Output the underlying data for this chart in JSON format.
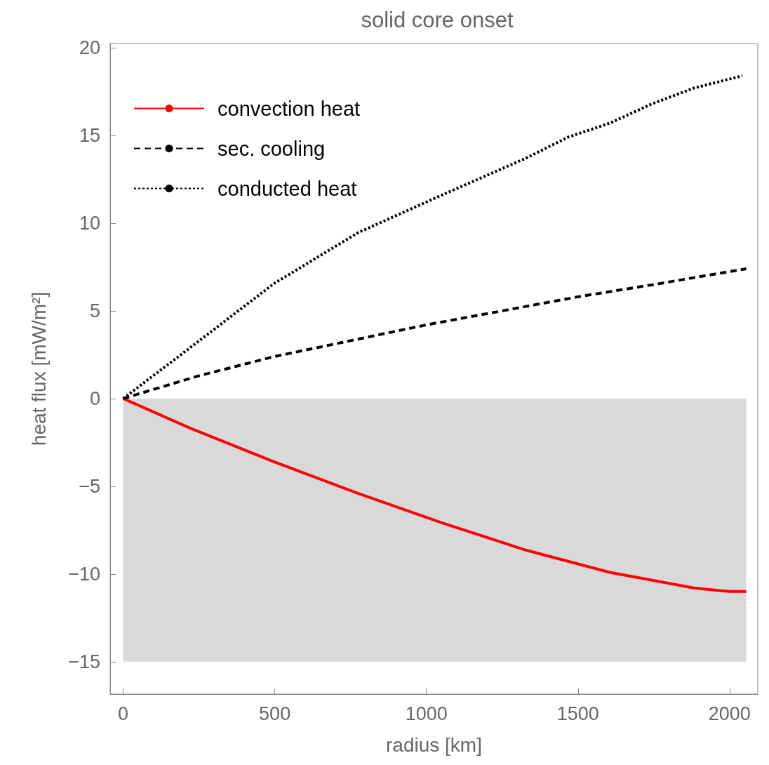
{
  "chart_data": {
    "type": "line",
    "title": "solid core onset",
    "xlabel": "radius [km]",
    "ylabel": "heat flux [mW/m²]",
    "xlim": [
      -43,
      2093
    ],
    "ylim": [
      -16.85,
      20.24
    ],
    "xticks": [
      0,
      500,
      1000,
      1500,
      2000
    ],
    "yticks": [
      {
        "value": -15,
        "label": "−15"
      },
      {
        "value": -10,
        "label": "−10"
      },
      {
        "value": -5,
        "label": "−5"
      },
      0,
      5,
      10,
      15,
      20
    ],
    "grid": false,
    "legend": "top left",
    "marker": "none",
    "bands": [
      {
        "axis": "y",
        "from": -15,
        "to": 0,
        "color": "#d9d9d9"
      }
    ],
    "series": [
      {
        "name": "convection heat",
        "color": "#ff0000",
        "line_style": "solid",
        "x": [
          0,
          220,
          497,
          774,
          1051,
          1328,
          1605,
          1882,
          2000,
          2055
        ],
        "values": [
          0,
          -1.68,
          -3.6,
          -5.4,
          -7.08,
          -8.64,
          -9.91,
          -10.8,
          -11.0,
          -11.0
        ]
      },
      {
        "name": "sec. cooling",
        "color": "#000000",
        "line_style": "dashed",
        "x": [
          0,
          250,
          500,
          750,
          1000,
          1250,
          1500,
          1750,
          2055
        ],
        "values": [
          0,
          1.3,
          2.4,
          3.3,
          4.2,
          5.0,
          5.8,
          6.5,
          7.4
        ]
      },
      {
        "name": "conducted heat",
        "color": "#000000",
        "line_style": "dotted",
        "x": [
          0,
          220,
          497,
          774,
          1051,
          1328,
          1467,
          1605,
          1744,
          1882,
          1951,
          2042
        ],
        "values": [
          0,
          2.89,
          6.55,
          9.45,
          11.6,
          13.7,
          14.9,
          15.7,
          16.8,
          17.7,
          18.0,
          18.4
        ]
      }
    ]
  }
}
